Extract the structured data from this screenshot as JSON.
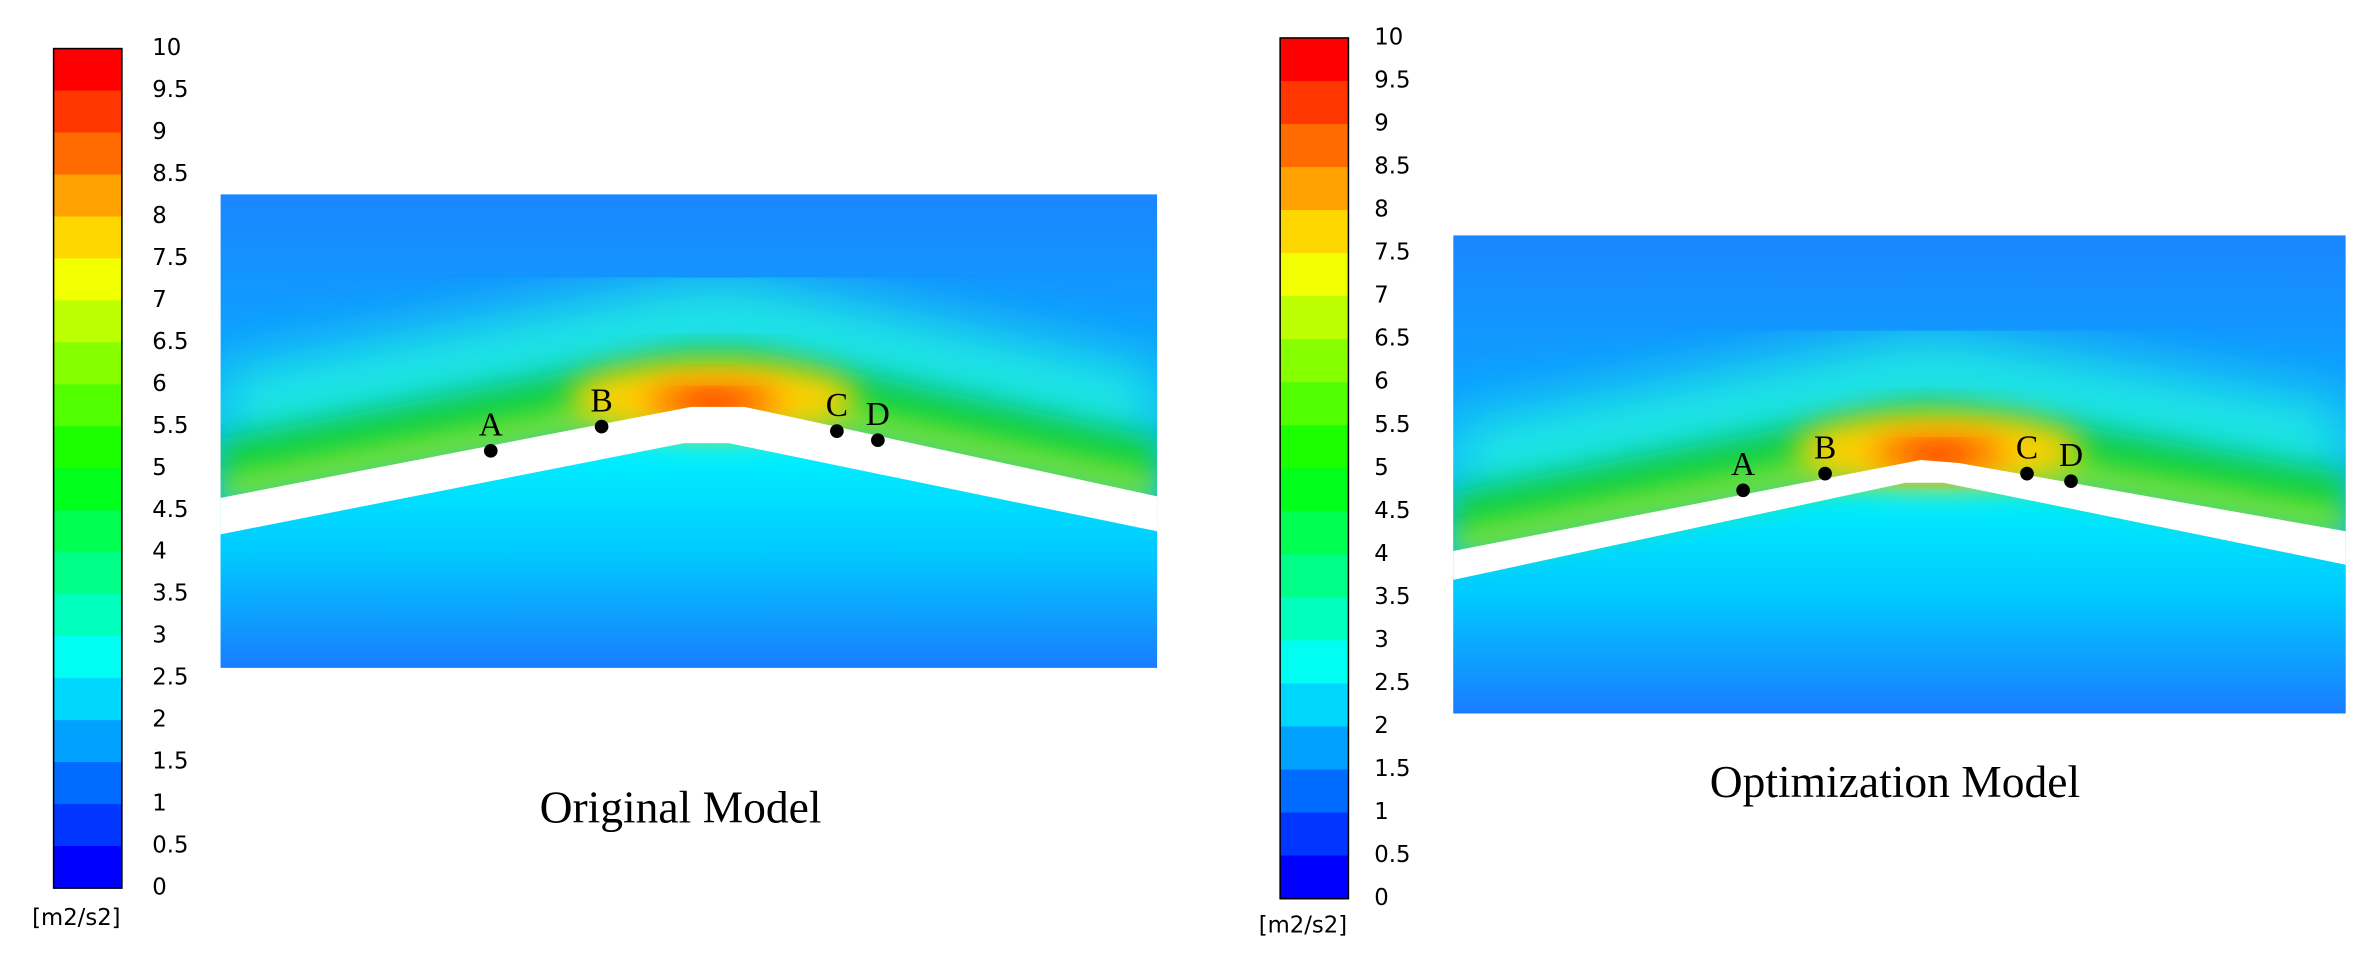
{
  "panels": [
    {
      "colorbar": {
        "ticks": [
          "10",
          "9.5",
          "9",
          "8.5",
          "8",
          "7.5",
          "7",
          "6.5",
          "6",
          "5.5",
          "5",
          "4.5",
          "4",
          "3.5",
          "3",
          "2.5",
          "2",
          "1.5",
          "1",
          "0.5",
          "0"
        ],
        "unit": "[m2/s2]"
      },
      "points": [
        "A",
        "B",
        "C",
        "D"
      ],
      "caption": "Original Model"
    },
    {
      "colorbar": {
        "ticks": [
          "10",
          "9.5",
          "9",
          "8.5",
          "8",
          "7.5",
          "7",
          "6.5",
          "6",
          "5.5",
          "5",
          "4.5",
          "4",
          "3.5",
          "3",
          "2.5",
          "2",
          "1.5",
          "1",
          "0.5",
          "0"
        ],
        "unit": "[m2/s2]"
      },
      "points": [
        "A",
        "B",
        "C",
        "D"
      ],
      "caption": "Optimization Model"
    }
  ]
}
